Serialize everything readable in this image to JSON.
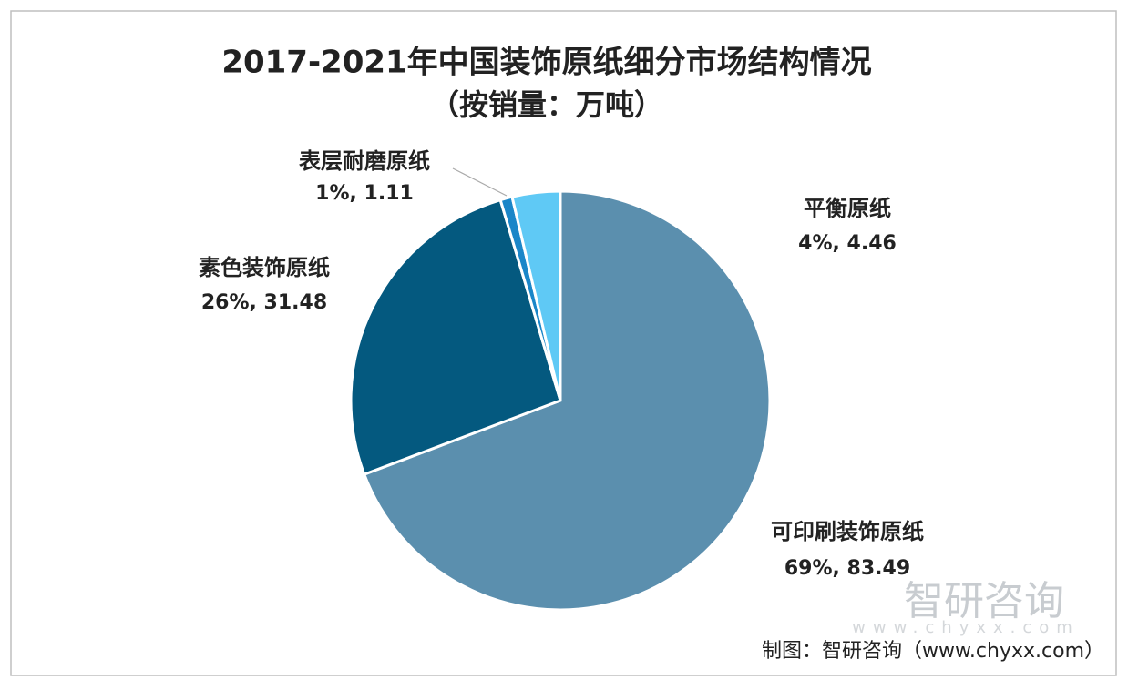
{
  "chart_data": {
    "type": "pie",
    "title": "2017-2021年中国装饰原纸细分市场结构情况",
    "subtitle": "（按销量：万吨）",
    "categories": [
      "可印刷装饰原纸",
      "素色装饰原纸",
      "表层耐磨原纸",
      "平衡原纸"
    ],
    "values": [
      83.49,
      31.48,
      1.11,
      4.46
    ],
    "value_labels": [
      "69%, 83.49",
      "26%, 31.48",
      "1%, 1.11",
      "4%, 4.46"
    ],
    "colors": [
      "#5b8fae",
      "#04597f",
      "#1a86c8",
      "#5fc9f5"
    ],
    "source": "制图：智研咨询（www.chyxx.com）",
    "watermark": "智研咨询",
    "watermark_url": "www.chyxx.com"
  }
}
